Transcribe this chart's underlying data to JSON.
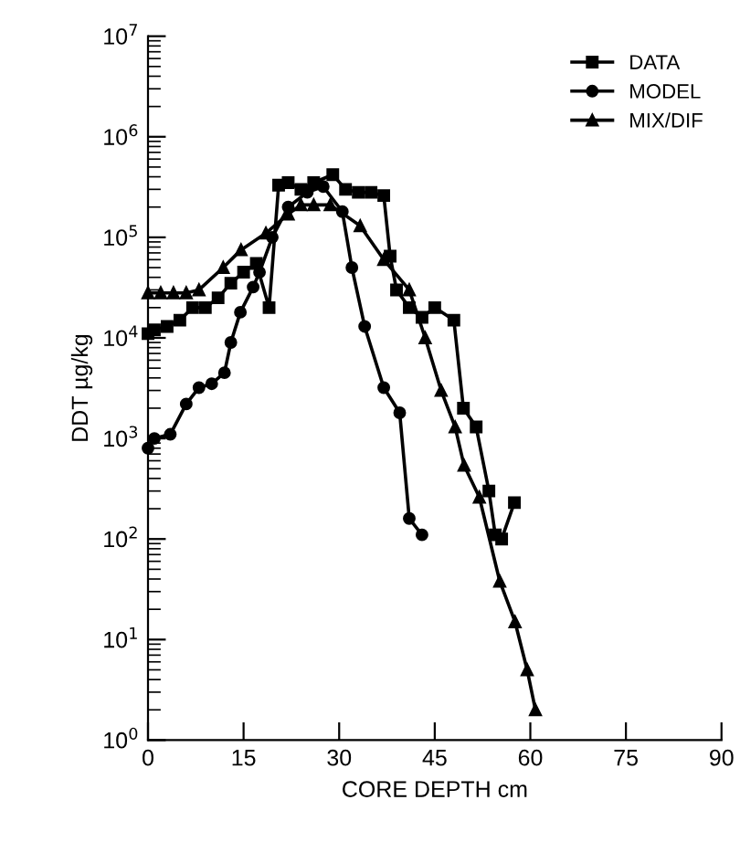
{
  "chart_data": {
    "type": "line",
    "xlabel": "CORE DEPTH cm",
    "ylabel": "DDT µg/kg",
    "xlim": [
      0,
      90
    ],
    "xticks": [
      0,
      15,
      30,
      45,
      60,
      75,
      90
    ],
    "ylim": [
      1,
      10000000
    ],
    "log": true,
    "yticks": [
      {
        "value": 1,
        "label": "10$^{0}$"
      },
      {
        "value": 10,
        "label": "10$^{1}$"
      },
      {
        "value": 100,
        "label": "10$^{2}$"
      },
      {
        "value": 1000,
        "label": "10$^{3}$"
      },
      {
        "value": 10000,
        "label": "10$^{4}$"
      },
      {
        "value": 100000,
        "label": "10$^{5}$"
      },
      {
        "value": 1000000,
        "label": "10$^{6}$"
      },
      {
        "value": 10000000,
        "label": "10$^{7}$"
      }
    ],
    "grid": false,
    "legend": "top right",
    "line_style": "solid",
    "series": [
      {
        "name": "DATA",
        "color": "#000000",
        "marker": "square",
        "x": [
          0,
          1,
          3,
          5,
          7,
          9,
          11,
          13,
          15,
          17,
          19,
          20.5,
          22,
          24,
          26,
          29,
          31,
          33,
          35,
          37,
          38,
          39,
          41,
          43,
          45,
          48,
          49.5,
          51.5,
          53.5,
          54.5,
          55.5,
          57.5
        ],
        "values": [
          11000,
          12000,
          13000,
          15000,
          20000,
          20000,
          25000,
          35000,
          45000,
          55000,
          20000,
          330000,
          350000,
          300000,
          350000,
          420000,
          300000,
          280000,
          280000,
          260000,
          65000,
          30000,
          20000,
          16000,
          20000,
          15000,
          2000,
          1300,
          300,
          110,
          100,
          230
        ]
      },
      {
        "name": "MODEL",
        "color": "#000000",
        "marker": "circle",
        "x": [
          0,
          1,
          3.5,
          6,
          8,
          10,
          12,
          13,
          14.5,
          16.5,
          17.5,
          19.5,
          22,
          25,
          27.5,
          30.5,
          32,
          34,
          37,
          39.5,
          41,
          43
        ],
        "values": [
          800,
          1000,
          1100,
          2200,
          3200,
          3500,
          4500,
          9000,
          18000,
          32000,
          45000,
          100000,
          200000,
          280000,
          320000,
          180000,
          50000,
          13000,
          3200,
          1800,
          160,
          110
        ]
      },
      {
        "name": "MIX/DIF",
        "color": "#000000",
        "marker": "triangle",
        "x": [
          0,
          2,
          4,
          6,
          8,
          11.8,
          14.6,
          18.5,
          22,
          24,
          26,
          28.6,
          33.3,
          37,
          41,
          43.5,
          46,
          48.2,
          49.6,
          52,
          55.2,
          57.6,
          59.5,
          60.8
        ],
        "values": [
          28000,
          28000,
          28000,
          28000,
          30000,
          50000,
          75000,
          110000,
          170000,
          210000,
          210000,
          210000,
          130000,
          60000,
          30000,
          10000,
          3000,
          1300,
          540,
          260,
          38,
          15,
          5,
          2
        ]
      }
    ]
  }
}
